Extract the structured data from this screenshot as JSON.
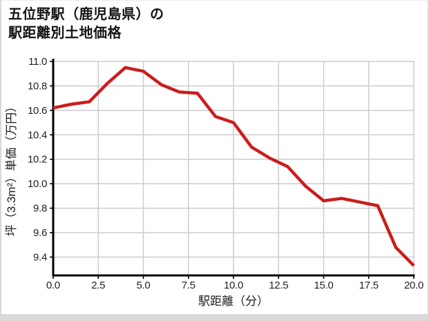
{
  "header": {
    "title_line1": "五位野駅（鹿児島県）の",
    "title_line2": "駅距離別土地価格"
  },
  "chart_data": {
    "type": "line",
    "title": "五位野駅（鹿児島県）の駅距離別土地価格",
    "xlabel": "駅距離（分）",
    "ylabel": "坪（3.3m²）単価（万円）",
    "x": [
      0,
      1,
      2,
      3,
      4,
      5,
      6,
      7,
      8,
      9,
      10,
      11,
      12,
      13,
      14,
      15,
      16,
      17,
      18,
      19,
      20
    ],
    "values": [
      10.62,
      10.65,
      10.67,
      10.82,
      10.95,
      10.92,
      10.81,
      10.75,
      10.74,
      10.55,
      10.5,
      10.3,
      10.21,
      10.14,
      9.98,
      9.86,
      9.88,
      9.85,
      9.82,
      9.48,
      9.33
    ],
    "series_name": "駅距離別土地価格",
    "xlim": [
      0,
      20
    ],
    "ylim": [
      9.25,
      11.0
    ],
    "x_tick_labels": [
      "0.0",
      "2.5",
      "5.0",
      "7.5",
      "10.0",
      "12.5",
      "15.0",
      "17.5",
      "20.0"
    ],
    "y_tick_labels": [
      "9.4",
      "9.6",
      "9.8",
      "10.0",
      "10.2",
      "10.4",
      "10.6",
      "10.8",
      "11.0"
    ],
    "grid": true,
    "legend": false,
    "line_color": "#cd1c1c"
  },
  "colors": {
    "grid": "#cccccc",
    "axis": "#000000",
    "text": "#1f1f1f",
    "frame_border": "#d8d8d8",
    "bottom_strip": "#d9d9d9",
    "background": "#ffffff"
  }
}
